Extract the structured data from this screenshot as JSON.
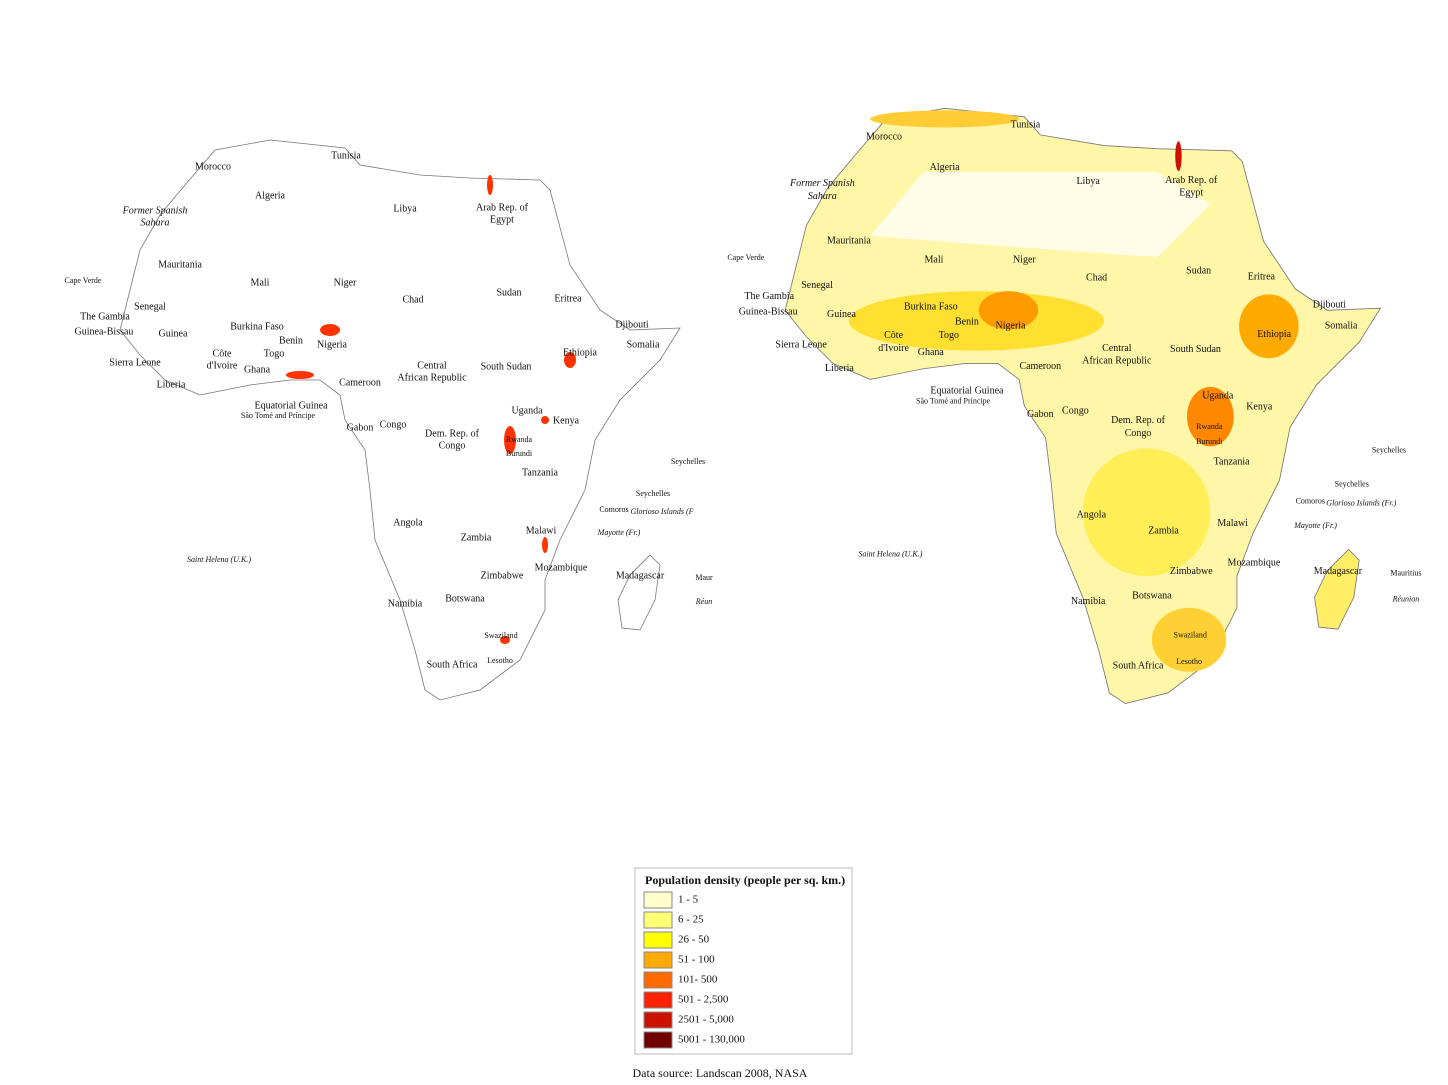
{
  "maps": [
    {
      "labels": [
        "Morocco",
        "Tunisia",
        "Algeria",
        "Libya",
        "Arab Rep. of",
        "Egypt",
        "Former Spanish",
        "Sahara",
        "Mauritania",
        "Mali",
        "Niger",
        "Chad",
        "Sudan",
        "Eritrea",
        "Djibouti",
        "Somalia",
        "Ethiopia",
        "Cape Verde",
        "Senegal",
        "The Gambia",
        "Guinea-Bissau",
        "Guinea",
        "Burkina Faso",
        "Benin",
        "Nigeria",
        "Côte",
        "d'Ivoire",
        "Togo",
        "Ghana",
        "Sierra Leone",
        "Liberia",
        "Cameroon",
        "Central",
        "African Republic",
        "South Sudan",
        "Equatorial Guinea",
        "São Tomé and Príncipe",
        "Gabon",
        "Congo",
        "Dem. Rep. of",
        "Congo",
        "Uganda",
        "Kenya",
        "Rwanda",
        "Burundi",
        "Tanzania",
        "Seychelles",
        "Seychelles",
        "Comoros",
        "Glorioso Islands (F",
        "Mayotte (Fr.)",
        "Angola",
        "Zambia",
        "Malawi",
        "Mozambique",
        "Madagascar",
        "Maur",
        "Réun",
        "Zimbabwe",
        "Saint Helena (U.K.)",
        "Namibia",
        "Botswana",
        "Swaziland",
        "South Africa",
        "Lesotho"
      ]
    },
    {
      "labels": [
        "Morocco",
        "Tunisia",
        "Algeria",
        "Libya",
        "Arab Rep. of",
        "Egypt",
        "Former Spanish",
        "Sahara",
        "Mauritania",
        "Mali",
        "Niger",
        "Chad",
        "Sudan",
        "Eritrea",
        "Djibouti",
        "Somalia",
        "Ethiopia",
        "Cape Verde",
        "Senegal",
        "The Gambia",
        "Guinea-Bissau",
        "Guinea",
        "Burkina Faso",
        "Benin",
        "Nigeria",
        "Côte",
        "d'Ivoire",
        "Togo",
        "Ghana",
        "Sierra Leone",
        "Liberia",
        "Cameroon",
        "Central",
        "African Republic",
        "South Sudan",
        "Equatorial Guinea",
        "São Tomé and Príncipe",
        "Gabon",
        "Congo",
        "Dem. Rep. of",
        "Congo",
        "Uganda",
        "Kenya",
        "Rwanda",
        "Burundi",
        "Tanzania",
        "Seychelles",
        "Seychelles",
        "Comoros",
        "Glorioso Islands (Fr.)",
        "Mayotte (Fr.)",
        "Angola",
        "Zambia",
        "Malawi",
        "Mozambique",
        "Madagascar",
        "Mauritius",
        "Réunion",
        "Zimbabwe",
        "Saint Helena (U.K.)",
        "Namibia",
        "Botswana",
        "Swaziland",
        "South Africa",
        "Lesotho"
      ]
    }
  ],
  "legend": {
    "title": "Population density (people per sq. km.)",
    "items": [
      {
        "label": "1 - 5",
        "color": "#ffffcc"
      },
      {
        "label": "6 - 25",
        "color": "#ffff73"
      },
      {
        "label": "26 - 50",
        "color": "#ffff00"
      },
      {
        "label": "51 - 100",
        "color": "#ffaa00"
      },
      {
        "label": "101- 500",
        "color": "#ff6a00"
      },
      {
        "label": "501 - 2,500",
        "color": "#ff2200"
      },
      {
        "label": "2501 - 5,000",
        "color": "#cc1100"
      },
      {
        "label": "5001 - 130,000",
        "color": "#730000"
      }
    ]
  },
  "source": "Data source: Landscan 2008, NASA"
}
